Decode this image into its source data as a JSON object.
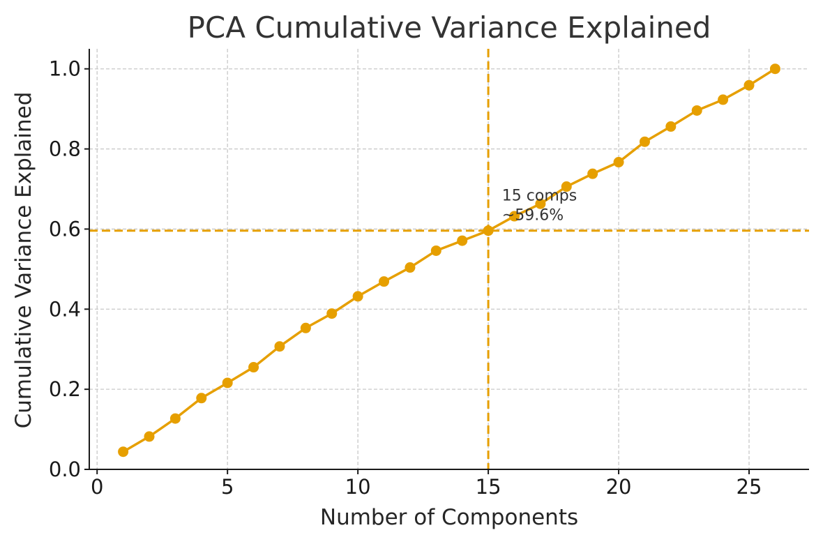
{
  "chart_data": {
    "type": "line",
    "title": "PCA Cumulative Variance Explained",
    "xlabel": "Number of Components",
    "ylabel": "Cumulative Variance Explained",
    "xlim": [
      -0.3,
      27.3
    ],
    "ylim": [
      0.0,
      1.05
    ],
    "x_ticks": [
      0,
      5,
      10,
      15,
      20,
      25
    ],
    "x_tick_labels": [
      "0",
      "5",
      "10",
      "15",
      "20",
      "25"
    ],
    "y_ticks": [
      0.0,
      0.2,
      0.4,
      0.6,
      0.8,
      1.0
    ],
    "y_tick_labels": [
      "0.0",
      "0.2",
      "0.4",
      "0.6",
      "0.8",
      "1.0"
    ],
    "grid": true,
    "series": [
      {
        "color": "#e69f00",
        "x": [
          1,
          2,
          3,
          4,
          5,
          6,
          7,
          8,
          9,
          10,
          11,
          12,
          13,
          14,
          15,
          16,
          17,
          18,
          19,
          20,
          21,
          22,
          23,
          24,
          25,
          26
        ],
        "values": [
          0.044,
          0.082,
          0.127,
          0.178,
          0.216,
          0.255,
          0.307,
          0.353,
          0.389,
          0.432,
          0.469,
          0.504,
          0.546,
          0.571,
          0.596,
          0.632,
          0.663,
          0.706,
          0.738,
          0.767,
          0.818,
          0.856,
          0.896,
          0.923,
          0.959,
          1.0
        ]
      }
    ],
    "reference_lines": {
      "vertical_x": 15,
      "horizontal_y": 0.596,
      "color": "#e69f00",
      "style": "dashed"
    },
    "annotation": {
      "lines": [
        "15 comps",
        "~59.6%"
      ],
      "anchor_x": 15.5,
      "anchor_y": 0.596
    }
  }
}
